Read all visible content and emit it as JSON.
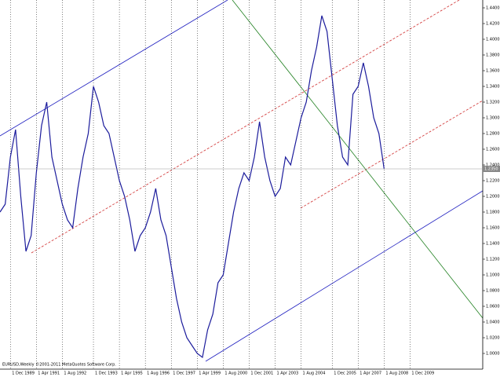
{
  "chart_data": {
    "type": "line",
    "title": "EURUSD,Weekly  ©2001-2011 MetaQuotes Software Corp.",
    "series": [
      {
        "name": "EURUSD",
        "color": "#1c1c9c",
        "values": [
          1.18,
          1.19,
          1.25,
          1.285,
          1.2,
          1.13,
          1.15,
          1.23,
          1.29,
          1.32,
          1.25,
          1.22,
          1.19,
          1.17,
          1.16,
          1.21,
          1.25,
          1.28,
          1.34,
          1.32,
          1.29,
          1.28,
          1.25,
          1.22,
          1.2,
          1.17,
          1.13,
          1.15,
          1.16,
          1.18,
          1.21,
          1.17,
          1.15,
          1.11,
          1.07,
          1.04,
          1.02,
          1.01,
          1.0,
          0.995,
          1.03,
          1.05,
          1.09,
          1.1,
          1.14,
          1.18,
          1.21,
          1.23,
          1.22,
          1.25,
          1.295,
          1.25,
          1.22,
          1.2,
          1.21,
          1.25,
          1.24,
          1.27,
          1.3,
          1.32,
          1.36,
          1.39,
          1.43,
          1.41,
          1.35,
          1.29,
          1.25,
          1.24,
          1.33,
          1.34,
          1.37,
          1.34,
          1.3,
          1.28,
          1.235
        ]
      }
    ],
    "xlim": [
      0,
      93
    ],
    "xticks": [
      {
        "value": 2,
        "label": "1 Dec 1989"
      },
      {
        "value": 7,
        "label": "1 Apr 1991"
      },
      {
        "value": 12,
        "label": "1 Aug 1992"
      },
      {
        "value": 18,
        "label": "1 Dec 1993"
      },
      {
        "value": 23,
        "label": "1 Apr 1995"
      },
      {
        "value": 28,
        "label": "1 Aug 1996"
      },
      {
        "value": 33,
        "label": "1 Dec 1997"
      },
      {
        "value": 38,
        "label": "1 Apr 1999"
      },
      {
        "value": 43,
        "label": "1 Aug 2000"
      },
      {
        "value": 48,
        "label": "1 Dec 2001"
      },
      {
        "value": 53,
        "label": "1 Apr 2003"
      },
      {
        "value": 58,
        "label": "1 Aug 2004"
      },
      {
        "value": 64,
        "label": "1 Dec 2005"
      },
      {
        "value": 69,
        "label": "1 Apr 2007"
      },
      {
        "value": 74,
        "label": "1 Aug 2008"
      },
      {
        "value": 79,
        "label": "1 Dec 2009"
      }
    ],
    "ylim": [
      0.98,
      1.45
    ],
    "yticks": [
      {
        "value": 1.0,
        "label": "1.0000"
      },
      {
        "value": 1.02,
        "label": "1.0200"
      },
      {
        "value": 1.04,
        "label": "1.0400"
      },
      {
        "value": 1.06,
        "label": "1.0600"
      },
      {
        "value": 1.08,
        "label": "1.0800"
      },
      {
        "value": 1.1,
        "label": "1.1000"
      },
      {
        "value": 1.12,
        "label": "1.1200"
      },
      {
        "value": 1.14,
        "label": "1.1400"
      },
      {
        "value": 1.16,
        "label": "1.1600"
      },
      {
        "value": 1.18,
        "label": "1.1800"
      },
      {
        "value": 1.2,
        "label": "1.2000"
      },
      {
        "value": 1.22,
        "label": "1.2200"
      },
      {
        "value": 1.24,
        "label": "1.2400"
      },
      {
        "value": 1.26,
        "label": "1.2600"
      },
      {
        "value": 1.28,
        "label": "1.2800"
      },
      {
        "value": 1.3,
        "label": "1.3000"
      },
      {
        "value": 1.32,
        "label": "1.3200"
      },
      {
        "value": 1.34,
        "label": "1.3400"
      },
      {
        "value": 1.36,
        "label": "1.3600"
      },
      {
        "value": 1.38,
        "label": "1.3800"
      },
      {
        "value": 1.4,
        "label": "1.4000"
      },
      {
        "value": 1.42,
        "label": "1.4200"
      },
      {
        "value": 1.44,
        "label": "1.4400"
      }
    ],
    "last": {
      "value": 1.235,
      "label": "1.2350"
    },
    "grid": "vertical"
  }
}
